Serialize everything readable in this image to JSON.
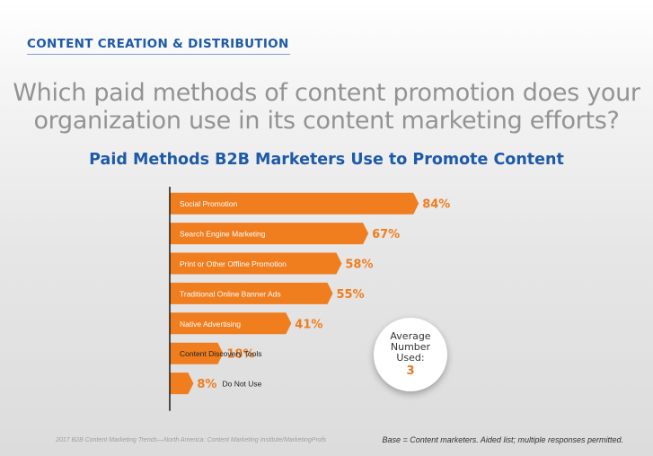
{
  "header": {
    "section": "CONTENT CREATION & DISTRIBUTION",
    "question": "Which paid methods of content promotion does your organization use in its content marketing efforts?"
  },
  "chart_data": {
    "type": "bar",
    "orientation": "horizontal",
    "title": "Paid Methods B2B Marketers Use to Promote Content",
    "xlabel": "",
    "ylabel": "",
    "xlim": [
      0,
      100
    ],
    "grid": false,
    "unit": "%",
    "categories": [
      "Social Promotion",
      "Search Engine Marketing",
      "Print or Other Offline Promotion",
      "Traditional Online Banner Ads",
      "Native Advertising",
      "Content Discovery Tools",
      "Do Not Use"
    ],
    "values": [
      84,
      67,
      58,
      55,
      41,
      18,
      8
    ],
    "value_labels": [
      "84%",
      "67%",
      "58%",
      "55%",
      "41%",
      "18%",
      "8%"
    ],
    "bar_color": "#f07d1e",
    "label_color": "#f07d1e"
  },
  "average": {
    "label": "Average Number Used:",
    "value": "3"
  },
  "footer": {
    "source": "2017 B2B Content Marketing Trends—North America: Content Marketing Institute/MarketingProfs",
    "base": "Base = Content marketers. Aided list; multiple responses permitted."
  }
}
